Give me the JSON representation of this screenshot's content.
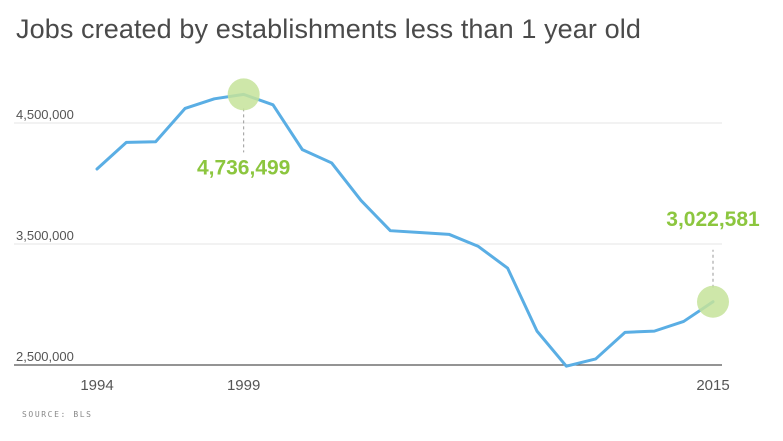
{
  "title": "Jobs created by establishments less than 1 year old",
  "source": "SOURCE: BLS",
  "colors": {
    "line": "#5aaee4",
    "highlight": "#8cc63f",
    "highlight_fill": "#c5e39a",
    "grid": "#e6e6e6",
    "axis": "#555555"
  },
  "chart_data": {
    "type": "line",
    "title": "Jobs created by establishments less than 1 year old",
    "xlabel": "",
    "ylabel": "",
    "x": [
      1994,
      1995,
      1996,
      1997,
      1998,
      1999,
      2000,
      2001,
      2002,
      2003,
      2004,
      2005,
      2006,
      2007,
      2008,
      2009,
      2010,
      2011,
      2012,
      2013,
      2014,
      2015
    ],
    "series": [
      {
        "name": "",
        "values": [
          4120000,
          4340000,
          4345000,
          4620000,
          4700000,
          4736499,
          4650000,
          4280000,
          4170000,
          3860000,
          3610000,
          3595000,
          3580000,
          3480000,
          3300000,
          2780000,
          2490000,
          2550000,
          2770000,
          2780000,
          2860000,
          3022581
        ]
      }
    ],
    "xlim": [
      1994,
      2015
    ],
    "ylim": [
      2500000,
      5000000
    ],
    "yticks": [
      2500000,
      3500000,
      4500000
    ],
    "ytick_labels": [
      "2,500,000",
      "3,500,000",
      "4,500,000"
    ],
    "xtick_labels": [
      {
        "x": 1994,
        "label": "1994"
      },
      {
        "x": 1999,
        "label": "1999"
      },
      {
        "x": 2015,
        "label": "2015"
      }
    ],
    "grid": true,
    "annotations": [
      {
        "x": 1999,
        "y": 4736499,
        "label": "4,736,499",
        "position": "below"
      },
      {
        "x": 2015,
        "y": 3022581,
        "label": "3,022,581",
        "position": "above"
      }
    ]
  }
}
